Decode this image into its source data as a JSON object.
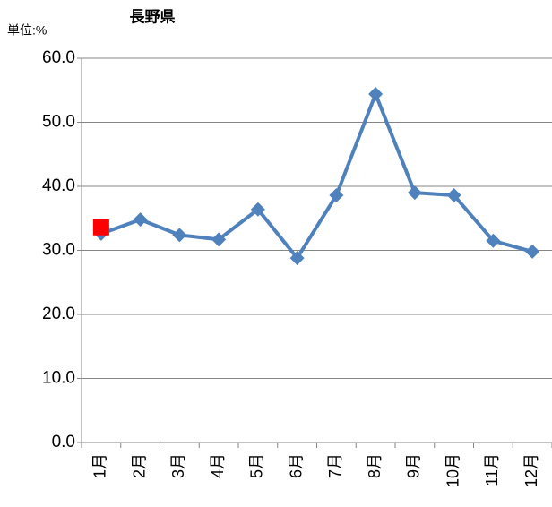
{
  "chart_data": {
    "type": "line",
    "title": "長野県",
    "y_axis_label": "単位:%",
    "categories": [
      "1月",
      "2月",
      "3月",
      "4月",
      "5月",
      "6月",
      "7月",
      "8月",
      "9月",
      "10月",
      "11月",
      "12月"
    ],
    "series": [
      {
        "color": "#4f81bd",
        "marker": "diamond",
        "values": [
          32.6,
          34.8,
          32.4,
          31.7,
          36.4,
          28.8,
          38.6,
          54.4,
          39.0,
          38.6,
          31.5,
          29.8
        ]
      },
      {
        "color": "#ff0000",
        "marker": "square",
        "values": [
          33.6,
          null,
          null,
          null,
          null,
          null,
          null,
          null,
          null,
          null,
          null,
          null
        ]
      }
    ],
    "ylim": [
      0,
      60
    ],
    "yticks": [
      {
        "value": 0,
        "label": "0.0"
      },
      {
        "value": 10,
        "label": "10.0"
      },
      {
        "value": 20,
        "label": "20.0"
      },
      {
        "value": 30,
        "label": "30.0"
      },
      {
        "value": 40,
        "label": "40.0"
      },
      {
        "value": 50,
        "label": "50.0"
      },
      {
        "value": 60,
        "label": "60.0"
      }
    ],
    "grid": true
  }
}
